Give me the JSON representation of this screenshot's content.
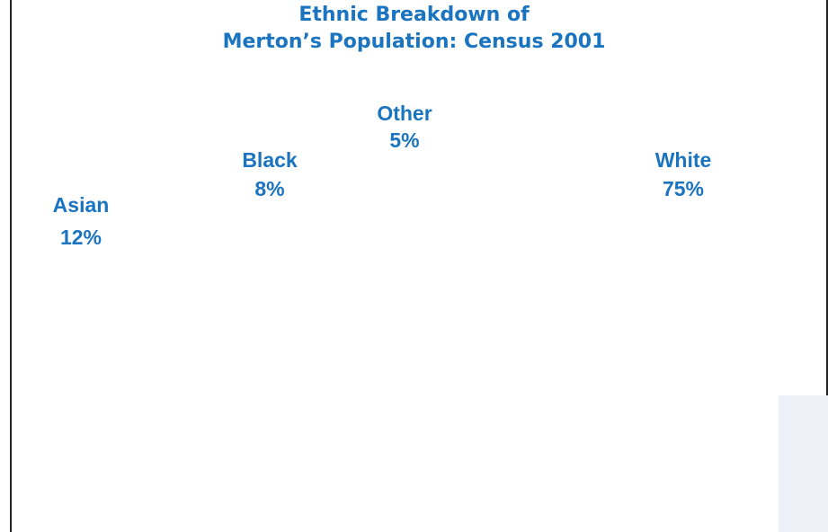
{
  "chart_data": {
    "type": "pie",
    "title": "Ethnic Breakdown of\nMerton’s Population: Census 2001",
    "categories": [
      "White",
      "Asian",
      "Black",
      "Other"
    ],
    "values": [
      75,
      12,
      8,
      5
    ],
    "value_labels": [
      "75%",
      "12%",
      "8%",
      "5%"
    ]
  }
}
